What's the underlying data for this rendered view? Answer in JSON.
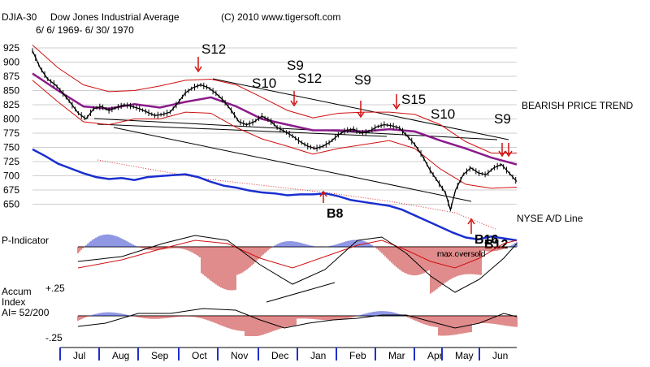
{
  "header": {
    "symbol": "DJIA-30",
    "name": "Dow Jones Industrial Average",
    "copyright": "(C) 2010 www.tigersoft.com",
    "date_range": "6/ 6/ 1969- 6/ 30/ 1970"
  },
  "chart_data": {
    "type": "line",
    "title": "Dow Jones Industrial Average",
    "price_panel": {
      "y_ticks": [
        925,
        900,
        875,
        850,
        825,
        800,
        775,
        750,
        725,
        700,
        675,
        650
      ],
      "ylim": [
        635,
        935
      ],
      "price_path": [
        [
          0,
          920
        ],
        [
          3,
          890
        ],
        [
          6,
          870
        ],
        [
          9,
          860
        ],
        [
          12,
          845
        ],
        [
          15,
          828
        ],
        [
          18,
          810
        ],
        [
          21,
          800
        ],
        [
          24,
          818
        ],
        [
          27,
          822
        ],
        [
          30,
          815
        ],
        [
          33,
          820
        ],
        [
          36,
          825
        ],
        [
          39,
          822
        ],
        [
          42,
          818
        ],
        [
          45,
          812
        ],
        [
          48,
          806
        ],
        [
          51,
          808
        ],
        [
          54,
          812
        ],
        [
          57,
          828
        ],
        [
          60,
          846
        ],
        [
          63,
          855
        ],
        [
          66,
          860
        ],
        [
          69,
          855
        ],
        [
          72,
          845
        ],
        [
          75,
          832
        ],
        [
          78,
          815
        ],
        [
          81,
          795
        ],
        [
          84,
          790
        ],
        [
          87,
          795
        ],
        [
          90,
          805
        ],
        [
          93,
          798
        ],
        [
          96,
          785
        ],
        [
          99,
          778
        ],
        [
          102,
          770
        ],
        [
          105,
          760
        ],
        [
          108,
          752
        ],
        [
          111,
          748
        ],
        [
          114,
          752
        ],
        [
          117,
          760
        ],
        [
          120,
          772
        ],
        [
          123,
          780
        ],
        [
          126,
          782
        ],
        [
          129,
          775
        ],
        [
          132,
          778
        ],
        [
          135,
          786
        ],
        [
          138,
          790
        ],
        [
          141,
          788
        ],
        [
          144,
          784
        ],
        [
          147,
          770
        ],
        [
          150,
          755
        ],
        [
          153,
          735
        ],
        [
          156,
          710
        ],
        [
          159,
          690
        ],
        [
          162,
          670
        ],
        [
          164,
          640
        ],
        [
          166,
          675
        ],
        [
          169,
          702
        ],
        [
          172,
          714
        ],
        [
          175,
          705
        ],
        [
          178,
          702
        ],
        [
          181,
          714
        ],
        [
          184,
          720
        ],
        [
          187,
          705
        ],
        [
          190,
          690
        ]
      ],
      "ma_path": [
        [
          0,
          880
        ],
        [
          10,
          850
        ],
        [
          20,
          822
        ],
        [
          30,
          818
        ],
        [
          40,
          826
        ],
        [
          50,
          820
        ],
        [
          60,
          830
        ],
        [
          70,
          838
        ],
        [
          80,
          822
        ],
        [
          90,
          800
        ],
        [
          100,
          790
        ],
        [
          110,
          780
        ],
        [
          120,
          780
        ],
        [
          130,
          778
        ],
        [
          140,
          782
        ],
        [
          150,
          778
        ],
        [
          160,
          762
        ],
        [
          170,
          748
        ],
        [
          180,
          732
        ],
        [
          190,
          720
        ]
      ],
      "upper_band": [
        [
          0,
          930
        ],
        [
          10,
          890
        ],
        [
          20,
          860
        ],
        [
          30,
          848
        ],
        [
          40,
          850
        ],
        [
          50,
          858
        ],
        [
          60,
          868
        ],
        [
          70,
          870
        ],
        [
          80,
          860
        ],
        [
          90,
          838
        ],
        [
          100,
          815
        ],
        [
          110,
          802
        ],
        [
          120,
          810
        ],
        [
          130,
          812
        ],
        [
          140,
          812
        ],
        [
          150,
          808
        ],
        [
          160,
          790
        ],
        [
          170,
          760
        ],
        [
          180,
          740
        ],
        [
          190,
          740
        ]
      ],
      "lower_band": [
        [
          0,
          868
        ],
        [
          10,
          830
        ],
        [
          20,
          795
        ],
        [
          30,
          790
        ],
        [
          40,
          800
        ],
        [
          50,
          800
        ],
        [
          60,
          812
        ],
        [
          70,
          810
        ],
        [
          80,
          785
        ],
        [
          90,
          765
        ],
        [
          100,
          752
        ],
        [
          110,
          738
        ],
        [
          120,
          748
        ],
        [
          130,
          755
        ],
        [
          140,
          762
        ],
        [
          150,
          748
        ],
        [
          160,
          712
        ],
        [
          170,
          685
        ],
        [
          180,
          678
        ],
        [
          190,
          680
        ]
      ]
    },
    "ad_line": {
      "label": "NYSE A/D Line",
      "values": [
        [
          0,
          95
        ],
        [
          5,
          88
        ],
        [
          10,
          80
        ],
        [
          15,
          75
        ],
        [
          20,
          70
        ],
        [
          25,
          66
        ],
        [
          30,
          64
        ],
        [
          35,
          65
        ],
        [
          40,
          63
        ],
        [
          45,
          66
        ],
        [
          50,
          67
        ],
        [
          55,
          68
        ],
        [
          60,
          69
        ],
        [
          65,
          66
        ],
        [
          70,
          61
        ],
        [
          75,
          57
        ],
        [
          80,
          55
        ],
        [
          85,
          52
        ],
        [
          90,
          50
        ],
        [
          95,
          49
        ],
        [
          100,
          47
        ],
        [
          105,
          48
        ],
        [
          110,
          48
        ],
        [
          115,
          49
        ],
        [
          120,
          46
        ],
        [
          125,
          42
        ],
        [
          130,
          40
        ],
        [
          135,
          38
        ],
        [
          140,
          36
        ],
        [
          145,
          32
        ],
        [
          150,
          26
        ],
        [
          155,
          20
        ],
        [
          160,
          14
        ],
        [
          165,
          8
        ],
        [
          170,
          3
        ],
        [
          175,
          1
        ],
        [
          180,
          4
        ],
        [
          185,
          2
        ],
        [
          190,
          0
        ]
      ]
    },
    "p_indicator": {
      "label": "P-Indicator",
      "annotation": "max.oversold"
    },
    "accum_index": {
      "label_line1": "Accum",
      "label_line2": "Index",
      "label_line3": "AI= 52/200",
      "upper_level": "+.25",
      "lower_level": "-.25"
    },
    "x_categories": [
      "Jul",
      "Aug",
      "Sep",
      "Oct",
      "Nov",
      "Dec",
      "Jan",
      "Feb",
      "Mar",
      "Apr",
      "May",
      "Jun"
    ],
    "signals": [
      {
        "label": "S12",
        "kind": "sell"
      },
      {
        "label": "S9",
        "kind": "sell"
      },
      {
        "label": "S10",
        "kind": "sell"
      },
      {
        "label": "S12",
        "kind": "sell"
      },
      {
        "label": "S9",
        "kind": "sell"
      },
      {
        "label": "S15",
        "kind": "sell"
      },
      {
        "label": "S10",
        "kind": "sell"
      },
      {
        "label": "S9",
        "kind": "sell"
      },
      {
        "label": "B8",
        "kind": "buy"
      },
      {
        "label": "B16",
        "kind": "buy"
      },
      {
        "label": "B12",
        "kind": "buy"
      }
    ],
    "annotations": {
      "trend": "BEARISH PRICE TREND"
    }
  }
}
